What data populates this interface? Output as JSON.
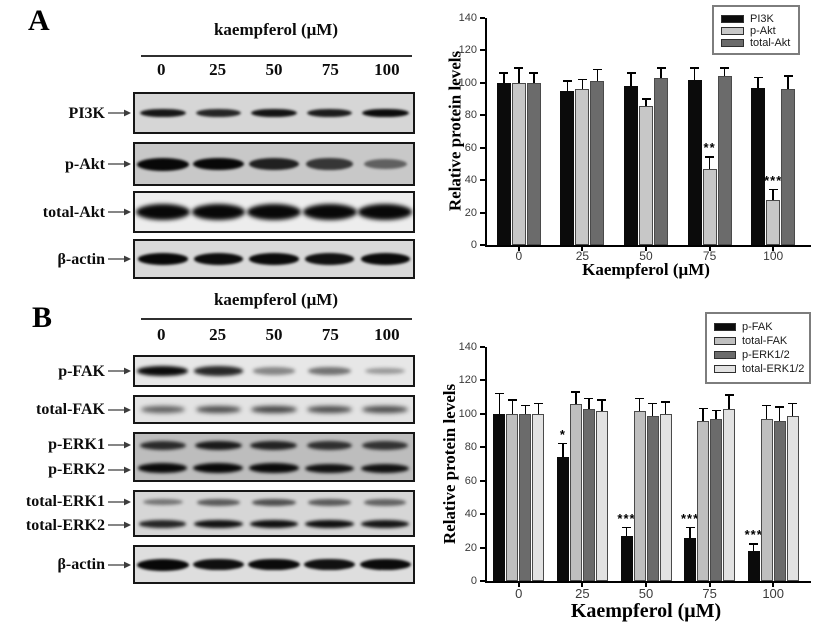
{
  "figure": {
    "panel_a": "A",
    "panel_b": "B"
  },
  "blots": {
    "panel_a": {
      "header": "kaempferol (μM)",
      "lanes": [
        "0",
        "25",
        "50",
        "75",
        "100"
      ],
      "rows": [
        {
          "labels": [
            "PI3K"
          ],
          "bg": "#d6d6d6",
          "band_h": 9,
          "band_w": 48,
          "blur": 1.2,
          "bands": [
            [
              0.88,
              0.8,
              0.9,
              0.85,
              0.95
            ]
          ]
        },
        {
          "labels": [
            "p-Akt"
          ],
          "bg": "#c8c8c8",
          "band_h": 13,
          "band_w": 52,
          "blur": 1.4,
          "bands": [
            [
              1.0,
              0.96,
              0.82,
              0.68,
              0.42
            ]
          ]
        },
        {
          "labels": [
            "total-Akt"
          ],
          "bg": "#ededed",
          "band_h": 16,
          "band_w": 54,
          "blur": 2.2,
          "bands": [
            [
              1.0,
              0.98,
              1.0,
              1.0,
              0.98
            ]
          ]
        },
        {
          "labels": [
            "β-actin"
          ],
          "bg": "#d9d9d9",
          "band_h": 12,
          "band_w": 50,
          "blur": 1.2,
          "bands": [
            [
              0.97,
              0.94,
              0.95,
              0.92,
              0.95
            ]
          ]
        }
      ]
    },
    "panel_b": {
      "header": "kaempferol (μM)",
      "lanes": [
        "0",
        "25",
        "50",
        "75",
        "100"
      ],
      "rows": [
        {
          "labels": [
            "p-FAK"
          ],
          "bg": "#e7e7e7",
          "band_h": 10,
          "band_w": 52,
          "blur": 1.8,
          "bands": [
            [
              0.95,
              0.8,
              0.3,
              0.4,
              0.2
            ]
          ]
        },
        {
          "labels": [
            "total-FAK"
          ],
          "bg": "#e3e3e3",
          "band_h": 9,
          "band_w": 52,
          "blur": 2.4,
          "bands": [
            [
              0.5,
              0.6,
              0.65,
              0.6,
              0.6
            ]
          ]
        },
        {
          "labels": [
            "p-ERK1",
            "p-ERK2"
          ],
          "bg": "#bdbdbd",
          "band_h": 10,
          "band_w": 50,
          "blur": 1.6,
          "bands": [
            [
              0.75,
              0.85,
              0.8,
              0.72,
              0.7
            ],
            [
              0.95,
              1.0,
              0.95,
              0.9,
              0.9
            ]
          ]
        },
        {
          "labels": [
            "total-ERK1",
            "total-ERK2"
          ],
          "bg": "#d6d6d6",
          "band_h": 8,
          "band_w": 50,
          "blur": 1.6,
          "bands": [
            [
              0.35,
              0.5,
              0.55,
              0.5,
              0.45
            ],
            [
              0.8,
              0.9,
              0.92,
              0.92,
              0.88
            ]
          ]
        },
        {
          "labels": [
            "β-actin"
          ],
          "bg": "#dedede",
          "band_h": 12,
          "band_w": 52,
          "blur": 1.2,
          "bands": [
            [
              1.0,
              0.93,
              0.95,
              0.92,
              0.95
            ]
          ]
        }
      ]
    }
  },
  "chart_data": [
    {
      "type": "bar",
      "panel": "A",
      "title": "",
      "categories": [
        "0",
        "25",
        "50",
        "75",
        "100"
      ],
      "series": [
        {
          "name": "PI3K",
          "color": "#0b0b0b",
          "values": [
            100,
            95,
            98,
            102,
            97
          ],
          "errors": [
            6,
            6,
            8,
            7,
            6
          ],
          "sig": [
            "",
            "",
            "",
            "",
            ""
          ]
        },
        {
          "name": "p-Akt",
          "color": "#c7c7c7",
          "values": [
            100,
            96,
            86,
            47,
            28
          ],
          "errors": [
            9,
            6,
            4,
            7,
            6
          ],
          "sig": [
            "",
            "",
            "",
            "**",
            "***"
          ]
        },
        {
          "name": "total-Akt",
          "color": "#6b6b6b",
          "values": [
            100,
            101,
            103,
            104,
            96
          ],
          "errors": [
            6,
            7,
            6,
            5,
            8
          ],
          "sig": [
            "",
            "",
            "",
            "",
            ""
          ]
        }
      ],
      "xlabel": "Kaempferol (μM)",
      "ylabel": "Relative protein levels",
      "ylim": [
        0,
        140
      ],
      "yticks": [
        0,
        20,
        40,
        60,
        80,
        100,
        120,
        140
      ],
      "legend_position": "top-right",
      "grid": false
    },
    {
      "type": "bar",
      "panel": "B",
      "title": "",
      "categories": [
        "0",
        "25",
        "50",
        "75",
        "100"
      ],
      "series": [
        {
          "name": "p-FAK",
          "color": "#0b0b0b",
          "values": [
            100,
            74,
            27,
            26,
            18
          ],
          "errors": [
            12,
            8,
            5,
            6,
            4
          ],
          "sig": [
            "",
            "*",
            "***",
            "***",
            "***"
          ]
        },
        {
          "name": "total-FAK",
          "color": "#bfbfbf",
          "values": [
            100,
            106,
            102,
            96,
            97
          ],
          "errors": [
            8,
            7,
            7,
            7,
            8
          ],
          "sig": [
            "",
            "",
            "",
            "",
            ""
          ]
        },
        {
          "name": "p-ERK1/2",
          "color": "#6b6b6b",
          "values": [
            100,
            103,
            99,
            97,
            96
          ],
          "errors": [
            5,
            6,
            7,
            5,
            8
          ],
          "sig": [
            "",
            "",
            "",
            "",
            ""
          ]
        },
        {
          "name": "total-ERK1/2",
          "color": "#e2e2e2",
          "values": [
            100,
            102,
            100,
            103,
            99
          ],
          "errors": [
            6,
            6,
            7,
            8,
            7
          ],
          "sig": [
            "",
            "",
            "",
            "",
            ""
          ]
        }
      ],
      "xlabel": "Kaempferol (μM)",
      "ylabel": "Relative protein levels",
      "ylim": [
        0,
        140
      ],
      "yticks": [
        0,
        20,
        40,
        60,
        80,
        100,
        120,
        140
      ],
      "legend_position": "top-right",
      "grid": false
    }
  ]
}
